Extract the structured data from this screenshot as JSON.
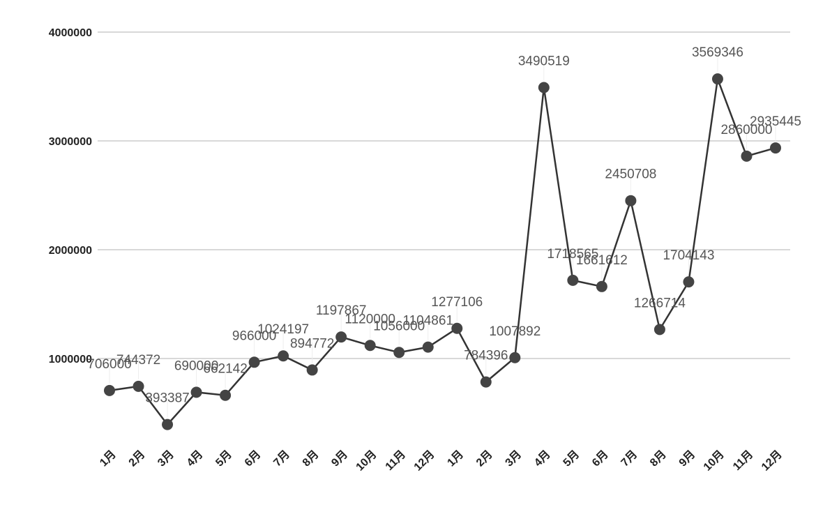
{
  "chart_data": {
    "type": "line",
    "title": "",
    "xlabel": "",
    "ylabel": "",
    "categories": [
      "1月",
      "2月",
      "3月",
      "4月",
      "5月",
      "6月",
      "7月",
      "8月",
      "9月",
      "10月",
      "11月",
      "12月",
      "1月",
      "2月",
      "3月",
      "4月",
      "5月",
      "6月",
      "7月",
      "8月",
      "9月",
      "10月",
      "11月",
      "12月"
    ],
    "values": [
      706000,
      744372,
      393387,
      690000,
      662142,
      966000,
      1024197,
      894772,
      1197867,
      1120000,
      1056000,
      1104861,
      1277106,
      784396,
      1007892,
      3490519,
      1718565,
      1661612,
      2450708,
      1266714,
      1704143,
      3569346,
      2860000,
      2935445
    ],
    "y_ticks": [
      "1000000",
      "2000000",
      "3000000",
      "4000000"
    ],
    "ylim": [
      0,
      4000000
    ],
    "grid": true,
    "line_color": "#333333",
    "marker_color": "#444444"
  }
}
